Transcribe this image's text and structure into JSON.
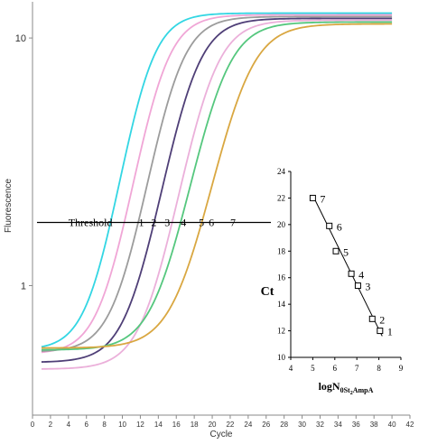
{
  "chart_data": [
    {
      "type": "line",
      "xlabel": "Cycle",
      "ylabel": "Fluorescence",
      "xlim": [
        0,
        42
      ],
      "ylim": [
        0.3,
        14
      ],
      "yscale": "log",
      "xticks": [
        "0",
        "2",
        "4",
        "6",
        "8",
        "10",
        "12",
        "14",
        "16",
        "18",
        "20",
        "22",
        "24",
        "26",
        "28",
        "30",
        "32",
        "34",
        "36",
        "38",
        "40",
        "42"
      ],
      "yticks": [
        {
          "label": "1",
          "value": 1
        },
        {
          "label": "10",
          "value": 10
        }
      ],
      "grid": false,
      "threshold": {
        "label": "Threshold",
        "value": 1.8,
        "x_start": 0.5,
        "x_end": 25
      },
      "curve_labels": [
        {
          "label": "1",
          "x": 11.8
        },
        {
          "label": "2",
          "x": 13.2
        },
        {
          "label": "3",
          "x": 14.7
        },
        {
          "label": "4",
          "x": 16.5
        },
        {
          "label": "5",
          "x": 18.5
        },
        {
          "label": "6",
          "x": 19.6
        },
        {
          "label": "7",
          "x": 22.0
        }
      ],
      "series": [
        {
          "color": "#33d6e3",
          "baseline": 0.55,
          "plateau": 12.6,
          "midpoint": 12.4,
          "slope": 0.58
        },
        {
          "color": "#f0a6d6",
          "baseline": 0.53,
          "plateau": 12.4,
          "midpoint": 14.0,
          "slope": 0.56
        },
        {
          "color": "#9c9c9c",
          "baseline": 0.54,
          "plateau": 12.2,
          "midpoint": 15.6,
          "slope": 0.55
        },
        {
          "color": "#4f3f77",
          "baseline": 0.49,
          "plateau": 12.0,
          "midpoint": 17.4,
          "slope": 0.53
        },
        {
          "color": "#ebb0da",
          "baseline": 0.46,
          "plateau": 11.8,
          "midpoint": 19.4,
          "slope": 0.52
        },
        {
          "color": "#55c77e",
          "baseline": 0.55,
          "plateau": 11.6,
          "midpoint": 20.6,
          "slope": 0.5
        },
        {
          "color": "#d9a741",
          "baseline": 0.56,
          "plateau": 11.4,
          "midpoint": 23.1,
          "slope": 0.48
        }
      ]
    },
    {
      "type": "scatter",
      "xlabel_main": "logN",
      "xlabel_sub": "0St",
      "xlabel_sub2": "2",
      "xlabel_sub3": "AmpA",
      "ylabel": "Ct",
      "xlim": [
        4,
        9
      ],
      "ylim": [
        10,
        24
      ],
      "xticks": [
        "4",
        "5",
        "6",
        "7",
        "8",
        "9"
      ],
      "yticks": [
        "10",
        "12",
        "14",
        "16",
        "18",
        "20",
        "22",
        "24"
      ],
      "points": [
        {
          "label": "7",
          "x": 5.0,
          "y": 22.0
        },
        {
          "label": "6",
          "x": 5.75,
          "y": 19.9
        },
        {
          "label": "5",
          "x": 6.05,
          "y": 18.0
        },
        {
          "label": "4",
          "x": 6.75,
          "y": 16.3
        },
        {
          "label": "3",
          "x": 7.05,
          "y": 15.4
        },
        {
          "label": "2",
          "x": 7.7,
          "y": 12.9
        },
        {
          "label": "1",
          "x": 8.05,
          "y": 12.0
        }
      ],
      "trendline": {
        "x1": 5.0,
        "y1": 22.2,
        "x2": 8.15,
        "y2": 11.6
      }
    }
  ]
}
